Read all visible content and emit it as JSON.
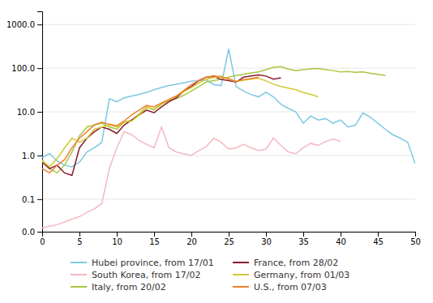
{
  "chart_data": {
    "type": "line",
    "log": "y",
    "grid": true,
    "legend": "bottom",
    "xlim": [
      0,
      50
    ],
    "xticks": [
      0,
      5,
      10,
      15,
      20,
      25,
      30,
      35,
      40,
      45,
      50
    ],
    "ylim": [
      0.018,
      2000
    ],
    "yticks": [
      {
        "value": 0.018,
        "label": "0.0"
      },
      0.1,
      {
        "value": 1.0,
        "label": "1.0"
      },
      {
        "value": 10.0,
        "label": "10.0"
      },
      {
        "value": 100.0,
        "label": "100.0"
      },
      {
        "value": 1000.0,
        "label": "1000.0"
      }
    ],
    "series": [
      {
        "name": "Hubei province, from 17/01",
        "color": "#7ec8e3",
        "x": [
          0,
          1,
          2,
          3,
          4,
          5,
          6,
          7,
          8,
          9,
          10,
          11,
          12,
          13,
          14,
          15,
          16,
          17,
          18,
          19,
          20,
          21,
          22,
          23,
          24,
          25,
          26,
          27,
          28,
          29,
          30,
          31,
          32,
          33,
          34,
          35,
          36,
          37,
          38,
          39,
          40,
          41,
          42,
          43,
          44,
          45,
          46,
          47,
          48,
          49,
          50
        ],
        "values": [
          0.9,
          1.1,
          0.75,
          0.6,
          0.55,
          0.7,
          1.2,
          1.5,
          2.0,
          20.0,
          17.0,
          21.0,
          23.0,
          25.0,
          28.0,
          32.0,
          36.0,
          40.0,
          43.0,
          46.0,
          50.0,
          52.0,
          54.0,
          42.0,
          40.0,
          280.0,
          38.0,
          30.0,
          25.0,
          22.0,
          28.0,
          22.0,
          15.0,
          12.0,
          10.0,
          5.5,
          8.0,
          6.5,
          7.0,
          5.5,
          6.5,
          4.5,
          5.0,
          9.5,
          7.5,
          5.5,
          4.0,
          3.0,
          2.5,
          2.0,
          0.65
        ]
      },
      {
        "name": "South Korea, from 17/02",
        "color": "#f4b8c1",
        "x": [
          0,
          1,
          2,
          3,
          4,
          5,
          6,
          7,
          8,
          9,
          10,
          11,
          12,
          13,
          14,
          15,
          16,
          17,
          18,
          19,
          20,
          21,
          22,
          23,
          24,
          25,
          26,
          27,
          28,
          29,
          30,
          31,
          32,
          33,
          34,
          35,
          36,
          37,
          38,
          39,
          40
        ],
        "values": [
          0.022,
          0.024,
          0.026,
          0.03,
          0.035,
          0.04,
          0.05,
          0.06,
          0.08,
          0.5,
          1.5,
          3.5,
          3.0,
          2.2,
          1.8,
          1.5,
          4.5,
          1.5,
          1.2,
          1.1,
          1.0,
          1.3,
          1.6,
          2.5,
          2.0,
          1.4,
          1.5,
          1.8,
          1.5,
          1.3,
          1.4,
          2.5,
          1.7,
          1.2,
          1.1,
          1.5,
          1.9,
          1.7,
          2.1,
          2.4,
          2.1
        ]
      },
      {
        "name": "Italy, from 20/02",
        "color": "#a8c840",
        "x": [
          0,
          1,
          2,
          3,
          4,
          5,
          6,
          7,
          8,
          9,
          10,
          11,
          12,
          13,
          14,
          15,
          16,
          17,
          18,
          19,
          20,
          21,
          22,
          23,
          24,
          25,
          26,
          27,
          28,
          29,
          30,
          31,
          32,
          33,
          34,
          35,
          36,
          37,
          38,
          39,
          40,
          41,
          42,
          43,
          44,
          45,
          46
        ],
        "values": [
          0.8,
          0.5,
          0.4,
          0.6,
          1.2,
          2.8,
          4.5,
          5.0,
          5.5,
          4.5,
          4.0,
          5.8,
          6.5,
          9.0,
          13.0,
          11.0,
          15.0,
          18.0,
          20.0,
          24.0,
          30.0,
          38.0,
          48.0,
          52.0,
          56.0,
          62.0,
          68.0,
          72.0,
          78.0,
          82.0,
          92.0,
          105.0,
          108.0,
          95.0,
          88.0,
          92.0,
          96.0,
          98.0,
          92.0,
          88.0,
          82.0,
          84.0,
          80.0,
          82.0,
          76.0,
          72.0,
          68.0
        ]
      },
      {
        "name": "France, from 28/02",
        "color": "#8b1a2e",
        "x": [
          0,
          1,
          2,
          3,
          4,
          5,
          6,
          7,
          8,
          9,
          10,
          11,
          12,
          13,
          14,
          15,
          16,
          17,
          18,
          19,
          20,
          21,
          22,
          23,
          24,
          25,
          26,
          27,
          28,
          29,
          30,
          31,
          32
        ],
        "values": [
          0.7,
          0.5,
          0.6,
          0.4,
          0.35,
          1.5,
          2.5,
          3.5,
          4.5,
          4.0,
          3.2,
          5.0,
          6.5,
          8.5,
          11.0,
          9.5,
          13.0,
          17.0,
          21.0,
          30.0,
          38.0,
          52.0,
          62.0,
          65.0,
          55.0,
          52.0,
          48.0,
          62.0,
          66.0,
          70.0,
          66.0,
          56.0,
          60.0
        ]
      },
      {
        "name": "Germany, from 01/03",
        "color": "#d4c830",
        "x": [
          0,
          1,
          2,
          3,
          4,
          5,
          6,
          7,
          8,
          9,
          10,
          11,
          12,
          13,
          14,
          15,
          16,
          17,
          18,
          19,
          20,
          21,
          22,
          23,
          24,
          25,
          26,
          27,
          28,
          29,
          30,
          31,
          32,
          33,
          34,
          35,
          36,
          37
        ],
        "values": [
          0.75,
          0.55,
          0.85,
          1.5,
          2.5,
          2.0,
          2.5,
          4.0,
          4.5,
          5.0,
          4.5,
          5.8,
          6.2,
          8.5,
          12.5,
          11.5,
          15.5,
          19.0,
          23.0,
          29.0,
          36.0,
          46.0,
          56.0,
          61.0,
          66.0,
          56.0,
          49.0,
          53.0,
          56.0,
          59.0,
          51.0,
          43.0,
          38.0,
          35.0,
          32.0,
          28.0,
          25.0,
          22.0
        ]
      },
      {
        "name": "U.S., from 07/03",
        "color": "#f08030",
        "x": [
          0,
          1,
          2,
          3,
          4,
          5,
          6,
          7,
          8,
          9,
          10,
          11,
          12,
          13,
          14,
          15,
          16,
          17,
          18,
          19,
          20,
          21,
          22,
          23,
          24,
          25,
          26,
          27,
          28,
          29
        ],
        "values": [
          0.5,
          0.4,
          0.6,
          0.8,
          1.5,
          2.5,
          3.5,
          5.0,
          5.8,
          5.2,
          4.8,
          6.2,
          8.5,
          11.0,
          14.0,
          13.0,
          16.0,
          19.0,
          23.0,
          31.0,
          42.0,
          52.0,
          62.0,
          67.0,
          62.0,
          57.0,
          50.0,
          55.0,
          58.0,
          62.0
        ]
      }
    ]
  }
}
